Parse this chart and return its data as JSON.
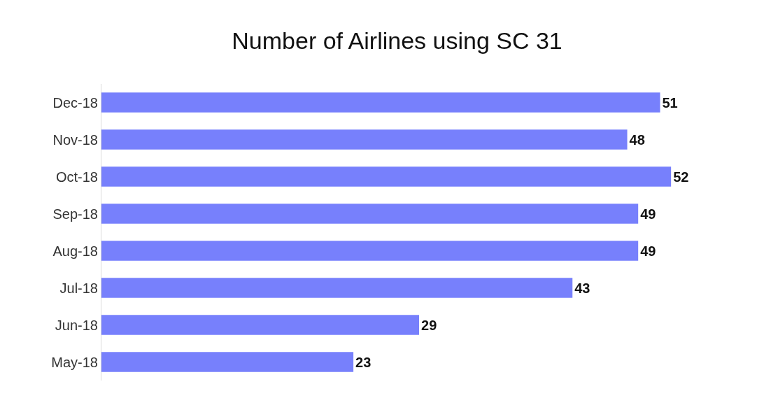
{
  "chart_data": {
    "type": "bar",
    "orientation": "horizontal",
    "title": "Number of Airlines using SC 31",
    "categories": [
      "Dec-18",
      "Nov-18",
      "Oct-18",
      "Sep-18",
      "Aug-18",
      "Jul-18",
      "Jun-18",
      "May-18"
    ],
    "values": [
      51,
      48,
      52,
      49,
      49,
      43,
      29,
      23
    ],
    "color": "#7780fc",
    "data_labels": true
  }
}
